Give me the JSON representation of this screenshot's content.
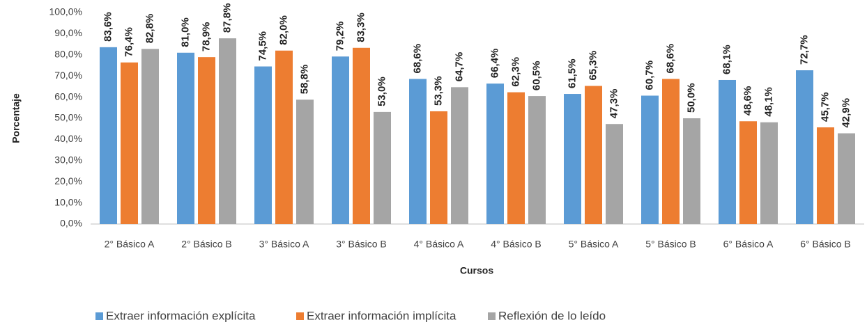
{
  "chart_data": {
    "type": "bar",
    "x_label": "Cursos",
    "y_label": "Porcentaje",
    "categories": [
      "2° Básico A",
      "2° Básico B",
      "3° Básico A",
      "3° Básico B",
      "4° Básico A",
      "4° Básico B",
      "5° Básico A",
      "5° Básico B",
      "6° Básico A",
      "6° Básico B"
    ],
    "series": [
      {
        "name": "Extraer información explícita",
        "color": "#5b9bd5",
        "values": [
          83.6,
          81.0,
          74.5,
          79.2,
          68.6,
          66.4,
          61.5,
          60.7,
          68.1,
          72.7
        ],
        "value_labels": [
          "83,6%",
          "81,0%",
          "74,5%",
          "79,2%",
          "68,6%",
          "66,4%",
          "61,5%",
          "60,7%",
          "68,1%",
          "72,7%"
        ]
      },
      {
        "name": "Extraer información implícita",
        "color": "#ed7d31",
        "values": [
          76.4,
          78.9,
          82.0,
          83.3,
          53.3,
          62.3,
          65.3,
          68.6,
          48.6,
          45.7
        ],
        "value_labels": [
          "76,4%",
          "78,9%",
          "82,0%",
          "83,3%",
          "53,3%",
          "62,3%",
          "65,3%",
          "68,6%",
          "48,6%",
          "45,7%"
        ]
      },
      {
        "name": "Reflexión de lo leído",
        "color": "#a5a5a5",
        "values": [
          82.8,
          87.8,
          58.8,
          53.0,
          64.7,
          60.5,
          47.3,
          50.0,
          48.1,
          42.9
        ],
        "value_labels": [
          "82,8%",
          "87,8%",
          "58,8%",
          "53,0%",
          "64,7%",
          "60,5%",
          "47,3%",
          "50,0%",
          "48,1%",
          "42,9%"
        ]
      }
    ],
    "ylim": [
      0,
      100
    ],
    "yticks": [
      {
        "value": 0,
        "label": "0,0%"
      },
      {
        "value": 10,
        "label": "10,0%"
      },
      {
        "value": 20,
        "label": "20,0%"
      },
      {
        "value": 30,
        "label": "30,0%"
      },
      {
        "value": 40,
        "label": "40,0%"
      },
      {
        "value": 50,
        "label": "50,0%"
      },
      {
        "value": 60,
        "label": "60,0%"
      },
      {
        "value": 70,
        "label": "70,0%"
      },
      {
        "value": 80,
        "label": "80,0%"
      },
      {
        "value": 90,
        "label": "90,0%"
      },
      {
        "value": 100,
        "label": "100,0%"
      }
    ],
    "grid": false,
    "legend": "bottom"
  }
}
